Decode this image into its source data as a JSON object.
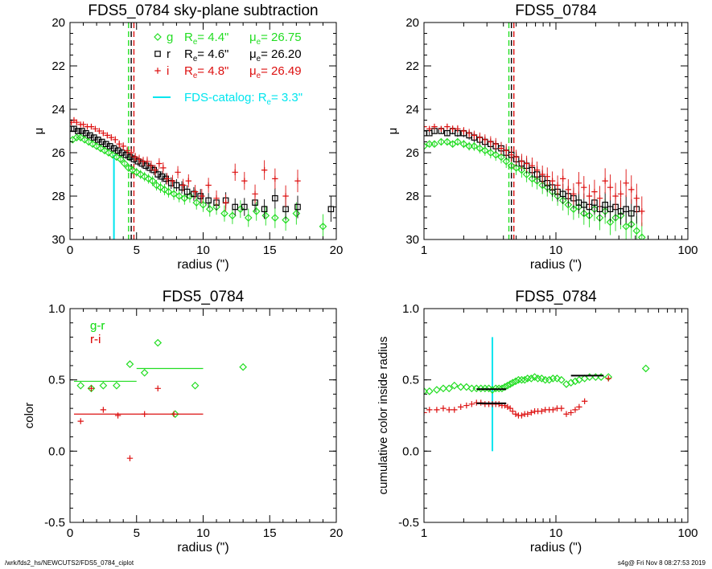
{
  "footer": {
    "left": "/wrk/fds2_hs/NEWCUTS2/FDS5_0784_ciplot",
    "right": "s4g@  Fri Nov  8 08:27:53 2019"
  },
  "colors": {
    "g": "#22dd22",
    "r": "#000000",
    "i": "#dd1111",
    "catalog": "#00e5ee"
  },
  "chart_data": [
    {
      "type": "scatter",
      "title": "FDS5_0784 sky-plane subtraction",
      "xlabel": "radius (\")",
      "ylabel": "μ",
      "xscale": "linear",
      "xlim": [
        0,
        20
      ],
      "ylim": [
        30,
        20
      ],
      "xticks": [
        0,
        5,
        10,
        15,
        20
      ],
      "yticks": [
        20,
        22,
        24,
        26,
        28,
        30
      ],
      "legend_position": "top-right",
      "legend": [
        {
          "band": "g",
          "re_label": "R",
          "re_sub": "e",
          "re_value": "=   4.4\"",
          "mu_label": "μ",
          "mu_sub": "e",
          "mu_value": "= 26.75",
          "marker": "diamond",
          "color": "#22dd22"
        },
        {
          "band": "r",
          "re_label": "R",
          "re_sub": "e",
          "re_value": "=   4.6\"",
          "mu_label": "μ",
          "mu_sub": "e",
          "mu_value": "= 26.20",
          "marker": "square",
          "color": "#000000"
        },
        {
          "band": "i",
          "re_label": "R",
          "re_sub": "e",
          "re_value": "=   4.8\"",
          "mu_label": "μ",
          "mu_sub": "e",
          "mu_value": "= 26.49",
          "marker": "plus",
          "color": "#dd1111"
        }
      ],
      "catalog_label": "FDS-catalog: R",
      "catalog_sub": "e",
      "catalog_value": "=   3.3\"",
      "catalog_re": 3.3,
      "catalog_line_top": 26.1,
      "re_lines": [
        {
          "x": 4.4,
          "color": "#22dd22"
        },
        {
          "x": 4.6,
          "color": "#000000"
        },
        {
          "x": 4.8,
          "color": "#dd1111"
        }
      ],
      "series": [
        {
          "band": "g",
          "x": [
            0.2,
            0.5,
            0.8,
            1.1,
            1.4,
            1.7,
            2.0,
            2.3,
            2.6,
            2.9,
            3.2,
            3.5,
            3.8,
            4.1,
            4.4,
            4.7,
            5.0,
            5.3,
            5.6,
            5.9,
            6.2,
            6.5,
            6.8,
            7.1,
            7.4,
            7.8,
            8.2,
            8.6,
            9.0,
            9.5,
            10.0,
            10.5,
            11.0,
            11.6,
            12.2,
            12.8,
            13.4,
            14.0,
            14.7,
            15.4,
            16.2,
            17.0,
            19.0
          ],
          "y": [
            25.4,
            25.3,
            25.3,
            25.4,
            25.5,
            25.6,
            25.7,
            25.8,
            25.9,
            26.0,
            26.1,
            26.2,
            26.3,
            26.5,
            26.7,
            26.8,
            26.9,
            27.0,
            27.1,
            27.2,
            27.3,
            27.5,
            27.6,
            27.7,
            27.8,
            27.9,
            28.0,
            28.1,
            28.0,
            28.3,
            28.4,
            28.6,
            28.5,
            28.8,
            28.9,
            28.6,
            29.0,
            28.7,
            28.9,
            29.0,
            29.1,
            28.8,
            29.4
          ]
        },
        {
          "band": "r",
          "x": [
            0.1,
            0.3,
            0.6,
            0.9,
            1.2,
            1.5,
            1.8,
            2.1,
            2.4,
            2.7,
            3.0,
            3.3,
            3.6,
            3.9,
            4.2,
            4.5,
            4.8,
            5.1,
            5.4,
            5.7,
            6.0,
            6.3,
            6.6,
            6.9,
            7.2,
            7.6,
            8.0,
            8.4,
            8.8,
            9.3,
            9.8,
            10.4,
            11.0,
            11.7,
            12.4,
            13.1,
            13.9,
            14.6,
            15.4,
            16.2,
            17.1,
            19.6
          ],
          "y": [
            24.9,
            24.9,
            25.0,
            25.0,
            25.1,
            25.2,
            25.3,
            25.4,
            25.5,
            25.6,
            25.7,
            25.8,
            25.9,
            26.0,
            26.1,
            26.2,
            26.3,
            26.4,
            26.5,
            26.6,
            26.7,
            26.8,
            27.0,
            27.1,
            27.2,
            27.4,
            27.5,
            27.6,
            27.8,
            27.9,
            28.0,
            28.2,
            28.3,
            28.2,
            28.5,
            28.5,
            28.3,
            28.6,
            28.1,
            28.6,
            28.5,
            28.6
          ]
        },
        {
          "band": "i",
          "x": [
            0.1,
            0.3,
            0.5,
            0.8,
            1.0,
            1.3,
            1.6,
            1.9,
            2.2,
            2.5,
            2.8,
            3.1,
            3.4,
            3.7,
            4.0,
            4.3,
            4.6,
            4.9,
            5.2,
            5.5,
            5.8,
            6.1,
            6.4,
            6.7,
            7.0,
            7.3,
            7.7,
            8.1,
            8.5,
            8.9,
            9.4,
            9.9,
            10.4,
            11.0,
            11.7,
            12.4,
            13.1,
            13.9,
            14.6,
            15.4,
            16.2,
            17.1
          ],
          "y": [
            24.6,
            24.5,
            24.6,
            24.7,
            24.7,
            24.8,
            24.8,
            24.9,
            25.0,
            25.1,
            25.2,
            25.3,
            25.4,
            25.6,
            25.7,
            25.9,
            26.0,
            26.2,
            26.3,
            26.4,
            26.4,
            26.6,
            26.8,
            26.5,
            26.7,
            27.2,
            27.3,
            26.9,
            27.5,
            27.3,
            27.8,
            28.0,
            27.5,
            28.1,
            28.3,
            26.9,
            27.3,
            27.9,
            26.8,
            27.2,
            28.0,
            27.3
          ]
        }
      ]
    },
    {
      "type": "scatter",
      "title": "FDS5_0784",
      "xlabel": "radius (\")",
      "ylabel": "μ",
      "xscale": "log",
      "xlim": [
        1,
        100
      ],
      "ylim": [
        30,
        20
      ],
      "xticks": [
        1,
        10,
        100
      ],
      "yticks": [
        20,
        22,
        24,
        26,
        28,
        30
      ],
      "re_lines": [
        {
          "x": 4.4,
          "color": "#22dd22"
        },
        {
          "x": 4.6,
          "color": "#000000"
        },
        {
          "x": 4.8,
          "color": "#dd1111"
        }
      ],
      "series": [
        {
          "band": "g",
          "x": [
            1.0,
            1.1,
            1.2,
            1.35,
            1.5,
            1.65,
            1.8,
            2.0,
            2.2,
            2.4,
            2.65,
            2.9,
            3.2,
            3.5,
            3.85,
            4.2,
            4.6,
            5.0,
            5.5,
            6.0,
            6.6,
            7.2,
            7.9,
            8.6,
            9.4,
            10.3,
            11.3,
            12.4,
            13.6,
            14.9,
            16.3,
            17.9,
            19.6,
            21.5,
            23.6,
            25.8,
            28.3,
            31.0,
            34.0,
            37.3,
            40.9,
            44.8
          ],
          "y": [
            25.7,
            25.6,
            25.6,
            25.5,
            25.5,
            25.6,
            25.5,
            25.6,
            25.7,
            25.7,
            25.8,
            25.9,
            26.0,
            26.1,
            26.2,
            26.4,
            26.6,
            26.7,
            26.8,
            27.0,
            27.2,
            27.3,
            27.5,
            27.6,
            27.8,
            28.0,
            28.2,
            28.4,
            28.6,
            28.5,
            28.8,
            28.9,
            28.6,
            29.0,
            28.7,
            29.2,
            29.0,
            28.9,
            29.4,
            29.3,
            29.6,
            29.9
          ]
        },
        {
          "band": "r",
          "x": [
            1.0,
            1.1,
            1.2,
            1.35,
            1.5,
            1.65,
            1.8,
            2.0,
            2.2,
            2.4,
            2.65,
            2.9,
            3.2,
            3.5,
            3.85,
            4.2,
            4.6,
            5.0,
            5.5,
            6.0,
            6.6,
            7.2,
            7.9,
            8.6,
            9.4,
            10.3,
            11.3,
            12.4,
            13.6,
            14.9,
            16.3,
            17.9,
            19.6,
            21.5,
            23.6,
            25.8,
            28.3,
            31.0,
            34.0,
            37.3,
            40.9
          ],
          "y": [
            25.1,
            25.1,
            25.0,
            25.0,
            25.1,
            25.0,
            25.1,
            25.1,
            25.2,
            25.3,
            25.4,
            25.5,
            25.6,
            25.7,
            25.8,
            26.0,
            26.1,
            26.3,
            26.5,
            26.6,
            26.8,
            27.0,
            27.2,
            27.4,
            27.6,
            27.8,
            27.9,
            28.0,
            28.1,
            28.3,
            28.4,
            28.5,
            28.3,
            28.6,
            28.4,
            28.6,
            28.5,
            28.7,
            28.6,
            28.8,
            28.6
          ]
        },
        {
          "band": "i",
          "x": [
            1.0,
            1.1,
            1.2,
            1.35,
            1.5,
            1.65,
            1.8,
            2.0,
            2.2,
            2.4,
            2.65,
            2.9,
            3.2,
            3.5,
            3.85,
            4.2,
            4.6,
            5.0,
            5.5,
            6.0,
            6.6,
            7.2,
            7.9,
            8.6,
            9.4,
            10.3,
            11.3,
            12.4,
            13.6,
            14.9,
            16.3,
            17.9,
            19.6,
            21.5,
            23.6,
            25.8,
            28.3,
            31.0,
            34.0,
            37.3,
            40.9,
            44.8
          ],
          "y": [
            24.8,
            24.9,
            24.8,
            24.9,
            24.8,
            24.9,
            24.9,
            25.0,
            25.1,
            25.2,
            25.3,
            25.4,
            25.5,
            25.6,
            25.8,
            25.9,
            26.1,
            26.2,
            26.4,
            26.5,
            26.6,
            26.8,
            27.0,
            27.1,
            27.3,
            27.5,
            27.2,
            27.7,
            27.9,
            27.4,
            27.6,
            28.0,
            27.8,
            28.1,
            27.3,
            27.6,
            28.0,
            27.9,
            27.4,
            27.7,
            28.1,
            28.7
          ]
        }
      ]
    },
    {
      "type": "scatter",
      "title": "FDS5_0784",
      "xlabel": "radius (\")",
      "ylabel": "color",
      "xscale": "linear",
      "xlim": [
        0,
        20
      ],
      "ylim": [
        -0.5,
        1.0
      ],
      "xticks": [
        0,
        5,
        10,
        15,
        20
      ],
      "yticks": [
        -0.5,
        0.0,
        0.5,
        1.0
      ],
      "ytick_labels": [
        "-0.5",
        "0.0",
        "0.5",
        "1.0"
      ],
      "legend_position": "top-left",
      "legend": [
        {
          "label": "g-r",
          "color": "#22dd22"
        },
        {
          "label": "r-i",
          "color": "#dd1111"
        }
      ],
      "series": [
        {
          "name": "g-r",
          "marker": "diamond",
          "x": [
            0.8,
            1.6,
            2.5,
            3.5,
            4.5,
            5.6,
            6.6,
            7.9,
            9.4,
            13.0
          ],
          "y": [
            0.46,
            0.44,
            0.46,
            0.46,
            0.61,
            0.55,
            0.76,
            0.26,
            0.46,
            0.59
          ],
          "levels": [
            {
              "x0": 0.3,
              "x1": 5.0,
              "y": 0.49
            },
            {
              "x0": 5.0,
              "x1": 10.0,
              "y": 0.58
            }
          ]
        },
        {
          "name": "r-i",
          "marker": "plus",
          "x": [
            0.8,
            1.6,
            2.5,
            3.6,
            4.5,
            5.6,
            6.6,
            7.8
          ],
          "y": [
            0.21,
            0.44,
            0.29,
            0.25,
            -0.05,
            0.26,
            0.44,
            0.26
          ],
          "levels": [
            {
              "x0": 0.3,
              "x1": 10.0,
              "y": 0.26
            }
          ]
        }
      ]
    },
    {
      "type": "scatter",
      "title": "FDS5_0784",
      "xlabel": "radius (\")",
      "ylabel": "cumulative color inside radius",
      "xscale": "log",
      "xlim": [
        1,
        100
      ],
      "ylim": [
        -0.5,
        1.0
      ],
      "xticks": [
        1,
        10,
        100
      ],
      "yticks": [
        -0.5,
        0.0,
        0.5,
        1.0
      ],
      "ytick_labels": [
        "-0.5",
        "0.0",
        "0.5",
        "1.0"
      ],
      "legend_position": "top-left",
      "legend": [
        {
          "label": "g-r",
          "color": "#22dd22"
        },
        {
          "label": "r-i",
          "color": "#dd1111"
        }
      ],
      "catalog_re": 3.3,
      "catalog_line": [
        0.0,
        0.8
      ],
      "series": [
        {
          "name": "g-r",
          "marker": "diamond",
          "x": [
            1.0,
            1.1,
            1.25,
            1.4,
            1.55,
            1.7,
            1.9,
            2.1,
            2.3,
            2.5,
            2.7,
            2.9,
            3.1,
            3.3,
            3.5,
            3.7,
            3.9,
            4.1,
            4.3,
            4.5,
            4.7,
            4.95,
            5.2,
            5.5,
            5.8,
            6.1,
            6.5,
            6.9,
            7.3,
            7.8,
            8.3,
            8.9,
            9.5,
            10.2,
            11.0,
            12.0,
            13.0,
            14.0,
            15.0,
            16.5,
            18.0,
            20.0,
            22.0,
            25.0,
            48.0
          ],
          "y": [
            0.42,
            0.42,
            0.43,
            0.44,
            0.44,
            0.46,
            0.45,
            0.45,
            0.44,
            0.44,
            0.44,
            0.44,
            0.44,
            0.43,
            0.44,
            0.44,
            0.44,
            0.45,
            0.46,
            0.47,
            0.48,
            0.49,
            0.5,
            0.5,
            0.5,
            0.51,
            0.51,
            0.52,
            0.51,
            0.51,
            0.5,
            0.5,
            0.51,
            0.51,
            0.5,
            0.47,
            0.48,
            0.49,
            0.5,
            0.51,
            0.52,
            0.52,
            0.52,
            0.52,
            0.58
          ],
          "levels": [
            {
              "x0": 2.5,
              "x1": 4.2,
              "y": 0.435
            },
            {
              "x0": 13.0,
              "x1": 23.0,
              "y": 0.53
            }
          ]
        },
        {
          "name": "r-i",
          "marker": "plus",
          "x": [
            1.0,
            1.1,
            1.25,
            1.4,
            1.55,
            1.7,
            1.9,
            2.1,
            2.3,
            2.5,
            2.7,
            2.9,
            3.1,
            3.3,
            3.5,
            3.7,
            3.9,
            4.1,
            4.3,
            4.5,
            4.7,
            4.95,
            5.2,
            5.5,
            5.8,
            6.1,
            6.5,
            6.9,
            7.3,
            7.8,
            8.3,
            8.9,
            9.5,
            10.2,
            11.0,
            12.0,
            13.0,
            14.0,
            15.0,
            16.5,
            25.0
          ],
          "y": [
            0.27,
            0.29,
            0.29,
            0.3,
            0.29,
            0.29,
            0.31,
            0.32,
            0.33,
            0.34,
            0.34,
            0.33,
            0.33,
            0.33,
            0.33,
            0.33,
            0.32,
            0.32,
            0.31,
            0.3,
            0.28,
            0.26,
            0.25,
            0.25,
            0.26,
            0.26,
            0.27,
            0.28,
            0.28,
            0.28,
            0.29,
            0.29,
            0.29,
            0.3,
            0.3,
            0.26,
            0.27,
            0.29,
            0.31,
            0.35,
            0.51
          ],
          "levels": [
            {
              "x0": 2.5,
              "x1": 4.2,
              "y": 0.335
            }
          ]
        }
      ]
    }
  ]
}
